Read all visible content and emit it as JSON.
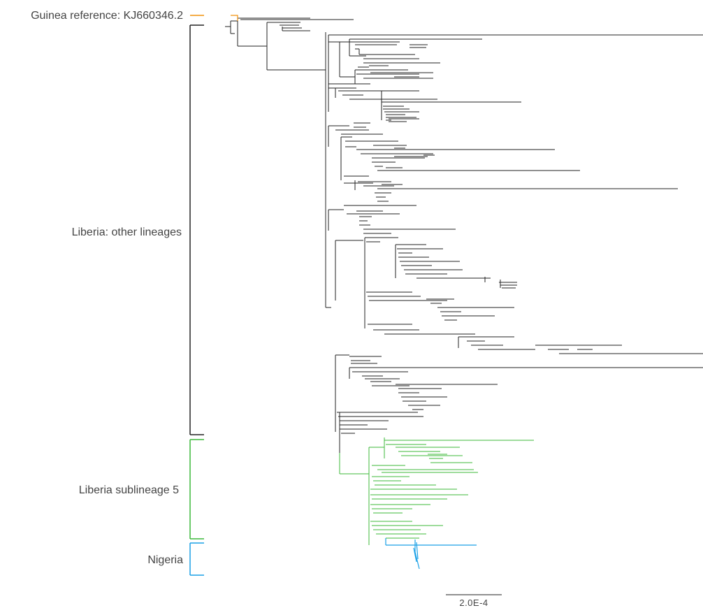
{
  "legend": {
    "guinea": {
      "label": "Guinea reference: KJ660346.2",
      "color": "#f0900a"
    },
    "other": {
      "label": "Liberia: other lineages",
      "color": "#222222"
    },
    "sub5": {
      "label": "Liberia sublineage 5",
      "color": "#3cb83a"
    },
    "nigeria": {
      "label": "Nigeria",
      "color": "#1aa0e6"
    }
  },
  "scale_bar": {
    "label": "2.0E-4"
  }
}
